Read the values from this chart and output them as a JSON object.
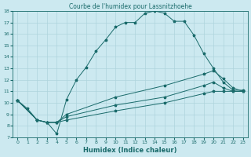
{
  "title": "Courbe de l'humidex pour Lassnitzhoehe",
  "xlabel": "Humidex (Indice chaleur)",
  "xlim": [
    -0.5,
    23.5
  ],
  "ylim": [
    7,
    18
  ],
  "xticks": [
    0,
    1,
    2,
    3,
    4,
    5,
    6,
    7,
    8,
    9,
    10,
    11,
    12,
    13,
    14,
    15,
    16,
    17,
    18,
    19,
    20,
    21,
    22,
    23
  ],
  "yticks": [
    7,
    8,
    9,
    10,
    11,
    12,
    13,
    14,
    15,
    16,
    17,
    18
  ],
  "background_color": "#cce9f0",
  "grid_color": "#aed4dc",
  "line_color": "#1a6b6b",
  "lines": [
    {
      "x": [
        0,
        1,
        2,
        3,
        4,
        5,
        6,
        7,
        8,
        9,
        10,
        11,
        12,
        13,
        14,
        15,
        16,
        17,
        18,
        19,
        20,
        21,
        22,
        23
      ],
      "y": [
        10.2,
        9.5,
        8.5,
        8.3,
        7.3,
        10.3,
        12.0,
        13.1,
        14.5,
        15.5,
        16.6,
        17.0,
        17.0,
        17.8,
        18.0,
        17.8,
        17.1,
        17.1,
        15.9,
        14.3,
        13.0,
        11.8,
        11.1,
        11.1
      ]
    },
    {
      "x": [
        0,
        2,
        3,
        4,
        5,
        10,
        15,
        19,
        20,
        21,
        22,
        23
      ],
      "y": [
        10.2,
        8.5,
        8.3,
        8.3,
        9.0,
        10.5,
        11.5,
        12.5,
        12.8,
        12.1,
        11.3,
        11.0
      ]
    },
    {
      "x": [
        0,
        2,
        3,
        4,
        5,
        10,
        15,
        19,
        20,
        21,
        22,
        23
      ],
      "y": [
        10.2,
        8.5,
        8.3,
        8.3,
        8.8,
        9.8,
        10.5,
        11.5,
        11.8,
        11.3,
        11.0,
        11.0
      ]
    },
    {
      "x": [
        0,
        2,
        3,
        4,
        5,
        10,
        15,
        19,
        20,
        21,
        22,
        23
      ],
      "y": [
        10.2,
        8.5,
        8.3,
        8.3,
        8.5,
        9.3,
        10.0,
        10.8,
        11.0,
        11.0,
        11.0,
        11.0
      ]
    }
  ],
  "title_fontsize": 5.5,
  "xlabel_fontsize": 6,
  "tick_fontsize": 4.5
}
